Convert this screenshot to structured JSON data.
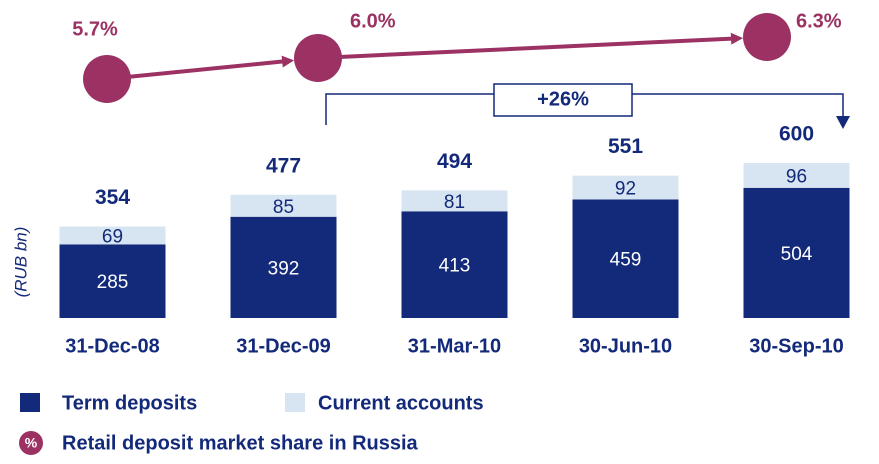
{
  "chart_data": {
    "type": "bar",
    "stacked": true,
    "y_label": "(RUB bn)",
    "categories": [
      "31-Dec-08",
      "31-Dec-09",
      "31-Mar-10",
      "30-Jun-10",
      "30-Sep-10"
    ],
    "series": [
      {
        "name": "Term deposits",
        "color": "#13297a",
        "values": [
          285,
          392,
          413,
          459,
          504
        ]
      },
      {
        "name": "Current accounts",
        "color": "#d7e4f1",
        "values": [
          69,
          85,
          81,
          92,
          96
        ]
      }
    ],
    "totals": [
      354,
      477,
      494,
      551,
      600
    ],
    "market_share": {
      "name": "Retail deposit market share in Russia",
      "icon": "%",
      "color": "#9b3263",
      "values": [
        5.7,
        6.0,
        null,
        null,
        6.3
      ],
      "value_labels": [
        "5.7%",
        "6.0%",
        null,
        null,
        "6.3%"
      ]
    },
    "annotation": "+26%"
  }
}
